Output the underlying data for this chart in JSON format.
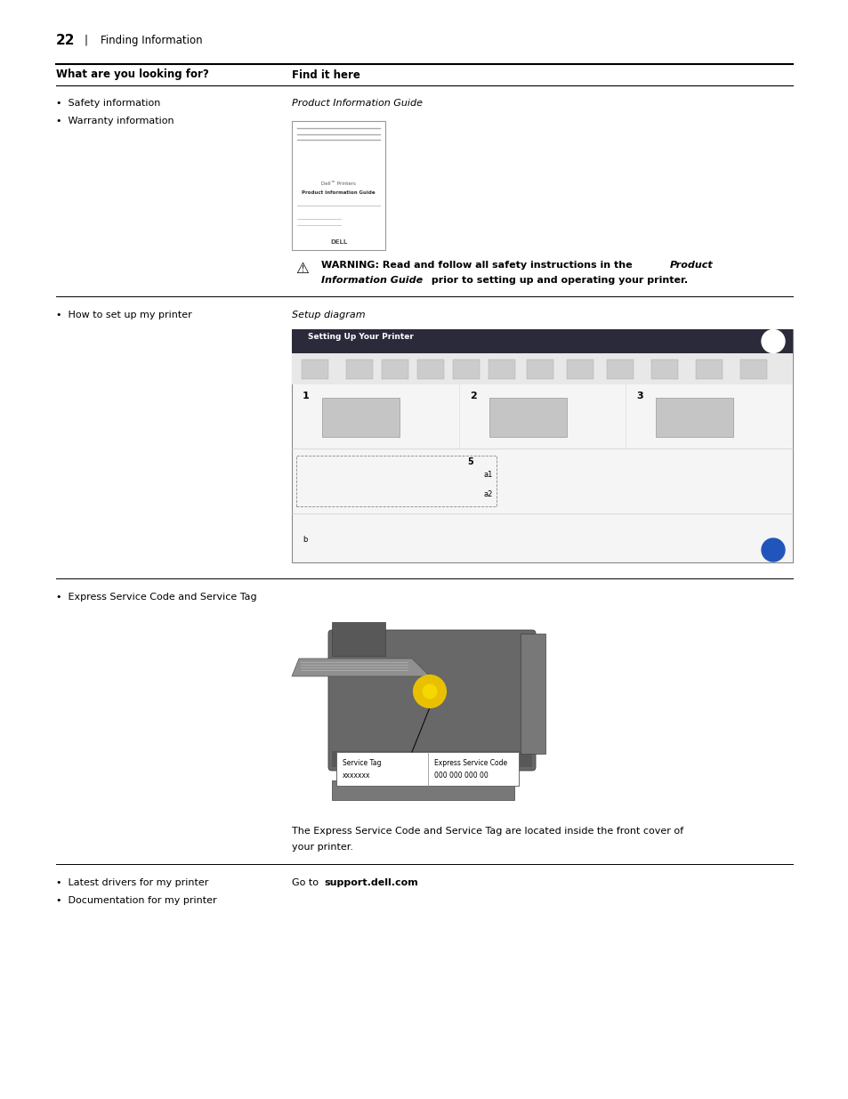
{
  "bg_color": "#ffffff",
  "page_width": 9.54,
  "page_height": 12.35,
  "lm1": 0.63,
  "lm2": 3.28,
  "rm": 8.91,
  "header_text1": "What are you looking for?",
  "header_text2": "Find it here",
  "row1_bullet1": "Safety information",
  "row1_bullet2": "Warranty information",
  "row1_find": "Product Information Guide",
  "row2_bullet": "How to set up my printer",
  "row2_find": "Setup diagram",
  "row3_bullet": "Express Service Code and Service Tag",
  "row3_find_line1": "The Express Service Code and Service Tag are located inside the front cover of",
  "row3_find_line2": "your printer.",
  "row4_bullet1": "Latest drivers for my printer",
  "row4_bullet2": "Documentation for my printer",
  "row4_find_prefix": "Go to ",
  "row4_find_bold": "support.dell.com",
  "row4_find_suffix": ".",
  "footer_page": "22",
  "footer_text": "Finding Information",
  "header_fs": 8.5,
  "body_fs": 8.0,
  "small_fs": 7.0,
  "footer_page_fs": 11,
  "footer_fs": 8.5
}
